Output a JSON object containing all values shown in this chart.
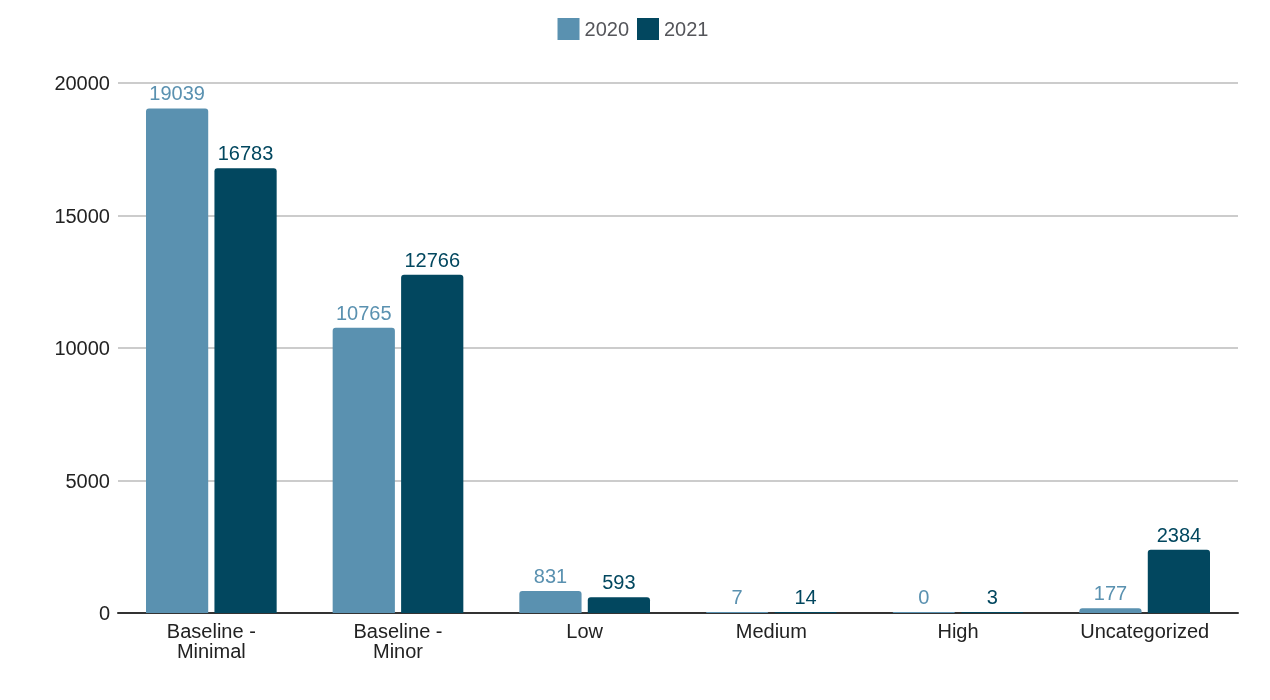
{
  "chart_data": {
    "type": "bar",
    "categories": [
      "Baseline - Minimal",
      "Baseline - Minor",
      "Low",
      "Medium",
      "High",
      "Uncategorized"
    ],
    "series": [
      {
        "name": "2020",
        "color": "#5a91b0",
        "values": [
          19039,
          10765,
          831,
          7,
          0,
          177
        ]
      },
      {
        "name": "2021",
        "color": "#02475f",
        "values": [
          16783,
          12766,
          593,
          14,
          3,
          2384
        ]
      }
    ],
    "ylim": [
      0,
      20000
    ],
    "yticks": [
      0,
      5000,
      10000,
      15000,
      20000
    ],
    "grid": "y",
    "legend": "top",
    "data_labels": true
  }
}
